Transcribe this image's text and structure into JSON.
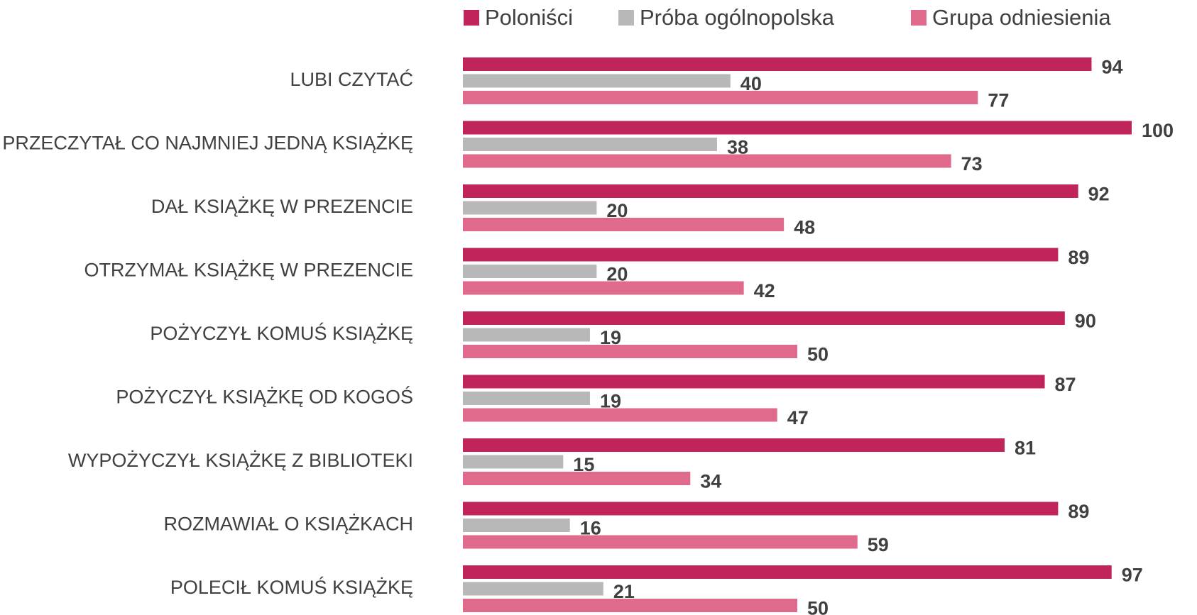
{
  "chart_data": {
    "type": "barh",
    "categories": [
      "LUBI CZYTAĆ",
      "PRZECZYTAŁ CO NAJMNIEJ JEDNĄ KSIĄŻKĘ",
      "DAŁ KSIĄŻKĘ W PREZENCIE",
      "OTRZYMAŁ KSIĄŻKĘ W PREZENCIE",
      "POŻYCZYŁ KOMUŚ KSIĄŻKĘ",
      "POŻYCZYŁ KSIĄŻKĘ OD KOGOŚ",
      "WYPOŻYCZYŁ KSIĄŻKĘ Z BIBLIOTEKI",
      "ROZMAWIAŁ O KSIĄŻKACH",
      "POLECIŁ KOMUŚ KSIĄŻKĘ"
    ],
    "series": [
      {
        "name": "Poloniści",
        "color": "#c0245a",
        "values": [
          94,
          100,
          92,
          89,
          90,
          87,
          81,
          89,
          97
        ]
      },
      {
        "name": "Próba ogólnopolska",
        "color": "#b8b8b8",
        "values": [
          40,
          38,
          20,
          20,
          19,
          19,
          15,
          16,
          21
        ]
      },
      {
        "name": "Grupa odniesienia",
        "color": "#e06a8c",
        "values": [
          77,
          73,
          48,
          42,
          50,
          47,
          34,
          59,
          50
        ]
      }
    ],
    "xlim": [
      0,
      100
    ],
    "legend": "top"
  }
}
